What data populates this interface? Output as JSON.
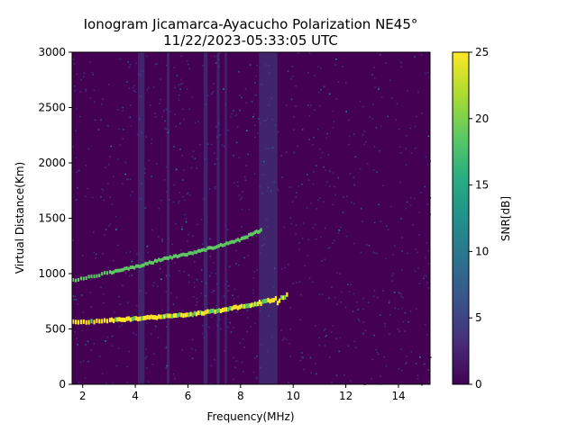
{
  "chart_data": {
    "type": "heatmap",
    "title_lines": [
      "Ionogram Jicamarca-Ayacucho Polarization NE45°",
      "11/22/2023-05:33:05 UTC"
    ],
    "xlabel": "Frequency(MHz)",
    "ylabel": "Virtual Distance(Km)",
    "xlim": [
      1.6,
      15.2
    ],
    "ylim": [
      0,
      3000
    ],
    "xticks": [
      2,
      4,
      6,
      8,
      10,
      12,
      14
    ],
    "yticks": [
      0,
      500,
      1000,
      1500,
      2000,
      2500,
      3000
    ],
    "grid": false,
    "colorbar": {
      "label": "SNR[dB]",
      "range": [
        0,
        25
      ],
      "ticks": [
        0,
        5,
        10,
        15,
        20,
        25
      ],
      "colormap": "viridis"
    },
    "traces": [
      {
        "description_key": "strong-echo",
        "points": [
          [
            1.6,
            560
          ],
          [
            3,
            575
          ],
          [
            4,
            595
          ],
          [
            5,
            610
          ],
          [
            6,
            630
          ],
          [
            7,
            660
          ],
          [
            8,
            700
          ],
          [
            8.8,
            740
          ],
          [
            9.8,
            780
          ]
        ]
      },
      {
        "description_key": "second-hop-echo",
        "points": [
          [
            1.6,
            940
          ],
          [
            3,
            1010
          ],
          [
            4,
            1060
          ],
          [
            5,
            1130
          ],
          [
            6,
            1180
          ],
          [
            7,
            1240
          ],
          [
            8,
            1310
          ],
          [
            8.8,
            1400
          ]
        ]
      }
    ],
    "colors": {
      "background_low": "#440154",
      "mid": "#3b518b",
      "high": "#fde725",
      "green": "#5ec962"
    }
  }
}
